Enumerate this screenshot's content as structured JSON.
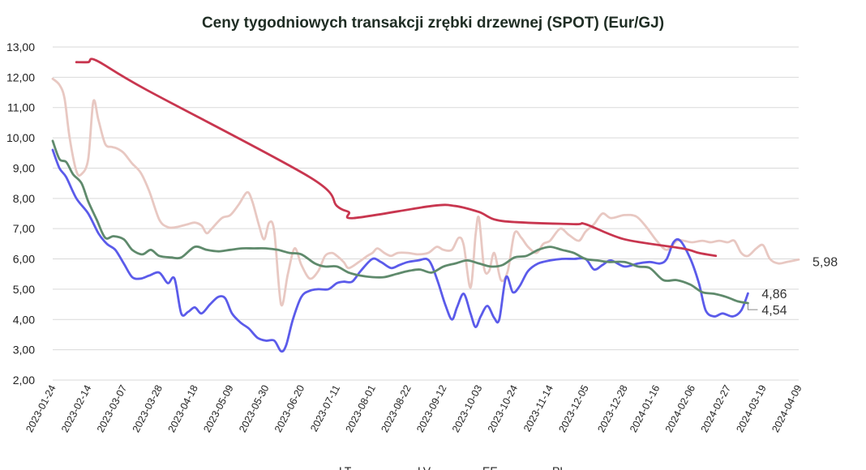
{
  "chart_data": {
    "type": "line",
    "title": "Ceny tygodniowych transakcji zrębki drzewnej (SPOT) (Eur/GJ)",
    "xlabel": "",
    "ylabel": "",
    "ylim": [
      2,
      13
    ],
    "yticks": [
      "2,00",
      "3,00",
      "4,00",
      "5,00",
      "6,00",
      "7,00",
      "8,00",
      "9,00",
      "10,00",
      "11,00",
      "12,00",
      "13,00"
    ],
    "ytick_values": [
      2,
      3,
      4,
      5,
      6,
      7,
      8,
      9,
      10,
      11,
      12,
      13
    ],
    "xlim": [
      "2023-01-24",
      "2024-04-09"
    ],
    "x_ticks": [
      "2023-01-24",
      "2023-02-14",
      "2023-03-07",
      "2023-03-28",
      "2023-04-18",
      "2023-05-09",
      "2023-05-30",
      "2023-06-20",
      "2023-07-11",
      "2023-08-01",
      "2023-08-22",
      "2023-09-12",
      "2023-10-03",
      "2023-10-24",
      "2023-11-14",
      "2023-12-05",
      "2023-12-28",
      "2024-01-16",
      "2024-02-06",
      "2024-02-27",
      "2024-03-19",
      "2024-04-09"
    ],
    "grid": true,
    "legend_position": "bottom",
    "end_labels": [
      "5,98",
      "4,86",
      "4,54"
    ],
    "series": [
      {
        "name": "EE",
        "color": "#e8c8c2",
        "points": [
          [
            "2023-01-24",
            11.95
          ],
          [
            "2023-01-28",
            11.75
          ],
          [
            "2023-01-31",
            11.3
          ],
          [
            "2023-02-03",
            10.0
          ],
          [
            "2023-02-07",
            8.9
          ],
          [
            "2023-02-10",
            8.8
          ],
          [
            "2023-02-14",
            9.3
          ],
          [
            "2023-02-17",
            11.2
          ],
          [
            "2023-02-20",
            10.6
          ],
          [
            "2023-02-24",
            9.8
          ],
          [
            "2023-02-28",
            9.7
          ],
          [
            "2023-03-03",
            9.65
          ],
          [
            "2023-03-07",
            9.5
          ],
          [
            "2023-03-12",
            9.15
          ],
          [
            "2023-03-17",
            8.85
          ],
          [
            "2023-03-22",
            8.25
          ],
          [
            "2023-03-28",
            7.3
          ],
          [
            "2023-04-02",
            7.05
          ],
          [
            "2023-04-07",
            7.05
          ],
          [
            "2023-04-14",
            7.15
          ],
          [
            "2023-04-18",
            7.2
          ],
          [
            "2023-04-22",
            7.1
          ],
          [
            "2023-04-25",
            6.85
          ],
          [
            "2023-04-28",
            7.0
          ],
          [
            "2023-05-04",
            7.35
          ],
          [
            "2023-05-09",
            7.45
          ],
          [
            "2023-05-14",
            7.8
          ],
          [
            "2023-05-19",
            8.2
          ],
          [
            "2023-05-22",
            7.9
          ],
          [
            "2023-05-26",
            7.1
          ],
          [
            "2023-05-29",
            6.65
          ],
          [
            "2023-06-01",
            7.2
          ],
          [
            "2023-06-04",
            6.9
          ],
          [
            "2023-06-08",
            4.5
          ],
          [
            "2023-06-12",
            5.5
          ],
          [
            "2023-06-16",
            6.35
          ],
          [
            "2023-06-20",
            5.8
          ],
          [
            "2023-06-25",
            5.35
          ],
          [
            "2023-06-30",
            5.6
          ],
          [
            "2023-07-04",
            6.1
          ],
          [
            "2023-07-08",
            6.2
          ],
          [
            "2023-07-11",
            6.1
          ],
          [
            "2023-07-15",
            5.9
          ],
          [
            "2023-07-18",
            5.7
          ],
          [
            "2023-07-24",
            5.9
          ],
          [
            "2023-07-29",
            6.1
          ],
          [
            "2023-08-01",
            6.2
          ],
          [
            "2023-08-04",
            6.35
          ],
          [
            "2023-08-08",
            6.2
          ],
          [
            "2023-08-12",
            6.1
          ],
          [
            "2023-08-16",
            6.2
          ],
          [
            "2023-08-22",
            6.2
          ],
          [
            "2023-08-28",
            6.15
          ],
          [
            "2023-09-03",
            6.2
          ],
          [
            "2023-09-08",
            6.4
          ],
          [
            "2023-09-12",
            6.3
          ],
          [
            "2023-09-17",
            6.3
          ],
          [
            "2023-09-21",
            6.7
          ],
          [
            "2023-09-24",
            6.45
          ],
          [
            "2023-09-28",
            5.05
          ],
          [
            "2023-10-01",
            6.8
          ],
          [
            "2023-10-03",
            7.35
          ],
          [
            "2023-10-06",
            5.7
          ],
          [
            "2023-10-09",
            5.6
          ],
          [
            "2023-10-12",
            6.2
          ],
          [
            "2023-10-16",
            5.3
          ],
          [
            "2023-10-20",
            5.6
          ],
          [
            "2023-10-24",
            6.85
          ],
          [
            "2023-10-28",
            6.7
          ],
          [
            "2023-11-01",
            6.4
          ],
          [
            "2023-11-06",
            6.2
          ],
          [
            "2023-11-10",
            6.5
          ],
          [
            "2023-11-14",
            6.6
          ],
          [
            "2023-11-20",
            7.0
          ],
          [
            "2023-11-25",
            6.8
          ],
          [
            "2023-12-01",
            6.6
          ],
          [
            "2023-12-05",
            6.9
          ],
          [
            "2023-12-10",
            7.15
          ],
          [
            "2023-12-15",
            7.5
          ],
          [
            "2023-12-20",
            7.35
          ],
          [
            "2023-12-28",
            7.45
          ],
          [
            "2024-01-04",
            7.4
          ],
          [
            "2024-01-10",
            7.05
          ],
          [
            "2024-01-16",
            6.6
          ],
          [
            "2024-01-22",
            6.3
          ],
          [
            "2024-01-28",
            6.6
          ],
          [
            "2024-02-01",
            6.6
          ],
          [
            "2024-02-06",
            6.55
          ],
          [
            "2024-02-12",
            6.6
          ],
          [
            "2024-02-17",
            6.55
          ],
          [
            "2024-02-22",
            6.6
          ],
          [
            "2024-02-27",
            6.55
          ],
          [
            "2024-03-02",
            6.6
          ],
          [
            "2024-03-06",
            6.2
          ],
          [
            "2024-03-10",
            6.1
          ],
          [
            "2024-03-15",
            6.35
          ],
          [
            "2024-03-19",
            6.45
          ],
          [
            "2024-03-23",
            6.0
          ],
          [
            "2024-03-28",
            5.85
          ],
          [
            "2024-04-02",
            5.9
          ],
          [
            "2024-04-09",
            5.98
          ]
        ]
      },
      {
        "name": "LT",
        "color": "#5b5bea",
        "points": [
          [
            "2023-01-24",
            9.6
          ],
          [
            "2023-01-28",
            9.0
          ],
          [
            "2023-02-01",
            8.7
          ],
          [
            "2023-02-07",
            8.0
          ],
          [
            "2023-02-14",
            7.5
          ],
          [
            "2023-02-20",
            6.85
          ],
          [
            "2023-02-25",
            6.5
          ],
          [
            "2023-03-02",
            6.3
          ],
          [
            "2023-03-07",
            5.85
          ],
          [
            "2023-03-12",
            5.4
          ],
          [
            "2023-03-17",
            5.35
          ],
          [
            "2023-03-22",
            5.45
          ],
          [
            "2023-03-28",
            5.55
          ],
          [
            "2023-04-02",
            5.2
          ],
          [
            "2023-04-06",
            5.35
          ],
          [
            "2023-04-10",
            4.2
          ],
          [
            "2023-04-14",
            4.25
          ],
          [
            "2023-04-18",
            4.4
          ],
          [
            "2023-04-22",
            4.2
          ],
          [
            "2023-04-27",
            4.5
          ],
          [
            "2023-05-02",
            4.75
          ],
          [
            "2023-05-06",
            4.7
          ],
          [
            "2023-05-10",
            4.2
          ],
          [
            "2023-05-15",
            3.9
          ],
          [
            "2023-05-20",
            3.7
          ],
          [
            "2023-05-25",
            3.4
          ],
          [
            "2023-05-30",
            3.3
          ],
          [
            "2023-06-04",
            3.3
          ],
          [
            "2023-06-08",
            2.95
          ],
          [
            "2023-06-11",
            3.15
          ],
          [
            "2023-06-15",
            4.0
          ],
          [
            "2023-06-20",
            4.75
          ],
          [
            "2023-06-25",
            4.95
          ],
          [
            "2023-06-30",
            5.0
          ],
          [
            "2023-07-06",
            5.0
          ],
          [
            "2023-07-11",
            5.2
          ],
          [
            "2023-07-15",
            5.25
          ],
          [
            "2023-07-20",
            5.25
          ],
          [
            "2023-07-25",
            5.6
          ],
          [
            "2023-08-01",
            6.0
          ],
          [
            "2023-08-06",
            5.9
          ],
          [
            "2023-08-12",
            5.7
          ],
          [
            "2023-08-17",
            5.8
          ],
          [
            "2023-08-22",
            5.9
          ],
          [
            "2023-08-28",
            5.95
          ],
          [
            "2023-09-02",
            6.0
          ],
          [
            "2023-09-05",
            5.8
          ],
          [
            "2023-09-09",
            5.2
          ],
          [
            "2023-09-13",
            4.5
          ],
          [
            "2023-09-17",
            4.0
          ],
          [
            "2023-09-20",
            4.4
          ],
          [
            "2023-09-24",
            4.85
          ],
          [
            "2023-09-28",
            4.2
          ],
          [
            "2023-10-01",
            3.75
          ],
          [
            "2023-10-04",
            4.1
          ],
          [
            "2023-10-08",
            4.45
          ],
          [
            "2023-10-12",
            4.05
          ],
          [
            "2023-10-15",
            4.0
          ],
          [
            "2023-10-19",
            5.4
          ],
          [
            "2023-10-23",
            4.9
          ],
          [
            "2023-10-27",
            5.1
          ],
          [
            "2023-11-01",
            5.6
          ],
          [
            "2023-11-07",
            5.85
          ],
          [
            "2023-11-14",
            5.95
          ],
          [
            "2023-11-21",
            6.0
          ],
          [
            "2023-11-28",
            6.0
          ],
          [
            "2023-12-05",
            6.0
          ],
          [
            "2023-12-10",
            5.65
          ],
          [
            "2023-12-15",
            5.8
          ],
          [
            "2023-12-20",
            5.95
          ],
          [
            "2023-12-28",
            5.75
          ],
          [
            "2024-01-05",
            5.85
          ],
          [
            "2024-01-12",
            5.9
          ],
          [
            "2024-01-18",
            5.85
          ],
          [
            "2024-01-22",
            6.0
          ],
          [
            "2024-01-26",
            6.55
          ],
          [
            "2024-01-30",
            6.6
          ],
          [
            "2024-02-05",
            6.0
          ],
          [
            "2024-02-10",
            5.2
          ],
          [
            "2024-02-14",
            4.3
          ],
          [
            "2024-02-19",
            4.1
          ],
          [
            "2024-02-24",
            4.2
          ],
          [
            "2024-03-01",
            4.1
          ],
          [
            "2024-03-06",
            4.3
          ],
          [
            "2024-03-10",
            4.86
          ]
        ]
      },
      {
        "name": "LV",
        "color": "#5f8a6c",
        "points": [
          [
            "2023-01-24",
            9.9
          ],
          [
            "2023-01-28",
            9.3
          ],
          [
            "2023-02-01",
            9.2
          ],
          [
            "2023-02-05",
            8.8
          ],
          [
            "2023-02-10",
            8.5
          ],
          [
            "2023-02-14",
            7.9
          ],
          [
            "2023-02-19",
            7.3
          ],
          [
            "2023-02-24",
            6.7
          ],
          [
            "2023-03-01",
            6.75
          ],
          [
            "2023-03-07",
            6.65
          ],
          [
            "2023-03-12",
            6.3
          ],
          [
            "2023-03-18",
            6.15
          ],
          [
            "2023-03-23",
            6.3
          ],
          [
            "2023-03-28",
            6.1
          ],
          [
            "2023-04-04",
            6.05
          ],
          [
            "2023-04-10",
            6.05
          ],
          [
            "2023-04-18",
            6.4
          ],
          [
            "2023-04-25",
            6.3
          ],
          [
            "2023-05-02",
            6.25
          ],
          [
            "2023-05-09",
            6.3
          ],
          [
            "2023-05-16",
            6.35
          ],
          [
            "2023-05-23",
            6.35
          ],
          [
            "2023-05-30",
            6.35
          ],
          [
            "2023-06-06",
            6.3
          ],
          [
            "2023-06-13",
            6.2
          ],
          [
            "2023-06-20",
            6.15
          ],
          [
            "2023-06-28",
            5.85
          ],
          [
            "2023-07-04",
            5.75
          ],
          [
            "2023-07-11",
            5.75
          ],
          [
            "2023-07-18",
            5.55
          ],
          [
            "2023-07-25",
            5.45
          ],
          [
            "2023-08-01",
            5.4
          ],
          [
            "2023-08-08",
            5.4
          ],
          [
            "2023-08-15",
            5.5
          ],
          [
            "2023-08-22",
            5.6
          ],
          [
            "2023-08-29",
            5.65
          ],
          [
            "2023-09-05",
            5.55
          ],
          [
            "2023-09-12",
            5.75
          ],
          [
            "2023-09-19",
            5.85
          ],
          [
            "2023-09-26",
            5.95
          ],
          [
            "2023-10-03",
            5.85
          ],
          [
            "2023-10-10",
            5.75
          ],
          [
            "2023-10-17",
            5.8
          ],
          [
            "2023-10-24",
            6.05
          ],
          [
            "2023-10-31",
            6.1
          ],
          [
            "2023-11-07",
            6.3
          ],
          [
            "2023-11-14",
            6.4
          ],
          [
            "2023-11-21",
            6.3
          ],
          [
            "2023-11-28",
            6.2
          ],
          [
            "2023-12-05",
            6.0
          ],
          [
            "2023-12-12",
            5.95
          ],
          [
            "2023-12-19",
            5.9
          ],
          [
            "2023-12-28",
            5.9
          ],
          [
            "2024-01-05",
            5.75
          ],
          [
            "2024-01-12",
            5.7
          ],
          [
            "2024-01-20",
            5.3
          ],
          [
            "2024-01-28",
            5.3
          ],
          [
            "2024-02-05",
            5.15
          ],
          [
            "2024-02-12",
            4.9
          ],
          [
            "2024-02-19",
            4.85
          ],
          [
            "2024-02-26",
            4.75
          ],
          [
            "2024-03-04",
            4.6
          ],
          [
            "2024-03-10",
            4.54
          ]
        ]
      },
      {
        "name": "PL",
        "color": "#c8364f",
        "points": [
          [
            "2023-02-07",
            12.5
          ],
          [
            "2023-02-14",
            12.5
          ],
          [
            "2023-02-19",
            12.55
          ],
          [
            "2023-03-20",
            11.6
          ],
          [
            "2023-06-25",
            8.7
          ],
          [
            "2023-07-11",
            7.75
          ],
          [
            "2023-07-18",
            7.55
          ],
          [
            "2023-07-21",
            7.35
          ],
          [
            "2023-09-05",
            7.75
          ],
          [
            "2023-09-19",
            7.75
          ],
          [
            "2023-10-03",
            7.55
          ],
          [
            "2023-10-17",
            7.25
          ],
          [
            "2023-11-28",
            7.15
          ],
          [
            "2023-12-05",
            7.15
          ],
          [
            "2023-12-28",
            6.65
          ],
          [
            "2024-01-31",
            6.35
          ],
          [
            "2024-02-10",
            6.2
          ],
          [
            "2024-02-20",
            6.1
          ]
        ]
      }
    ]
  }
}
